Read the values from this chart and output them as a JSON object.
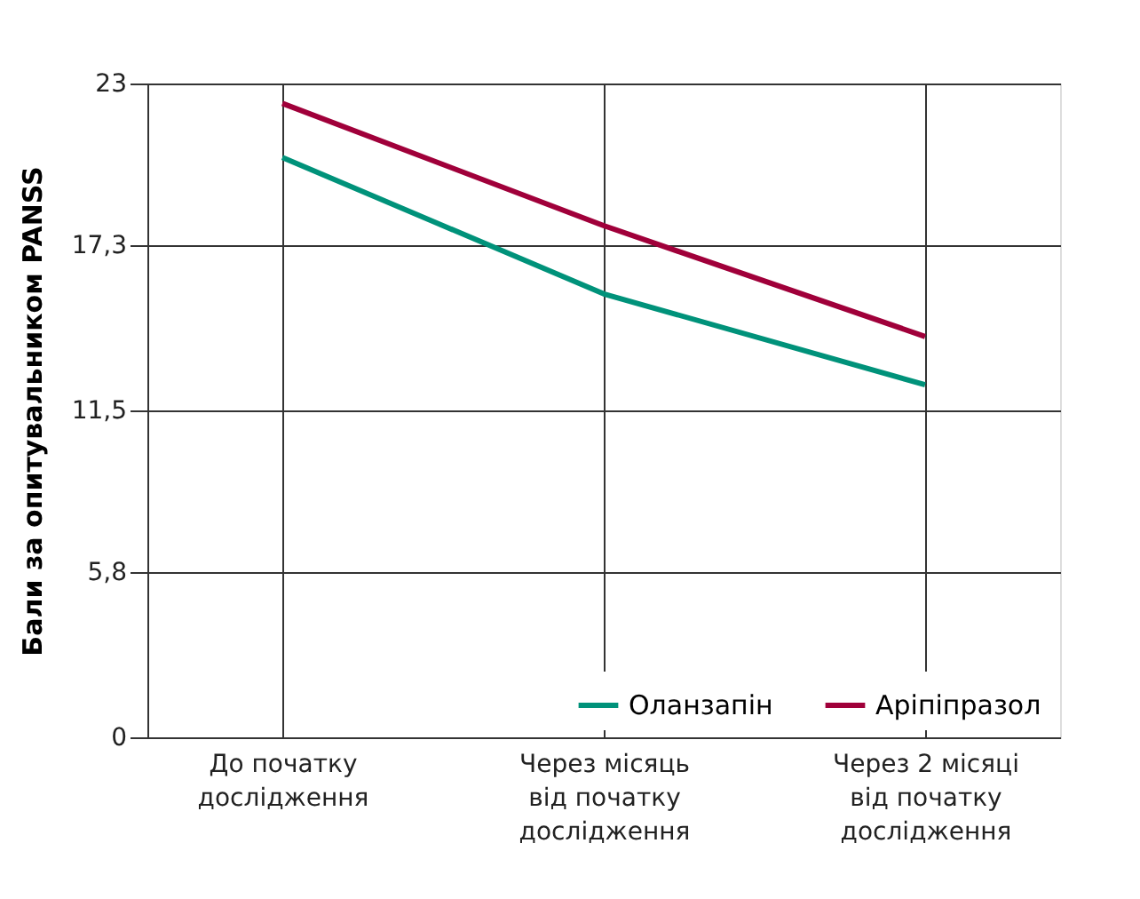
{
  "chart_data": {
    "type": "line",
    "ylabel": "Бали за опитувальником PANSS",
    "categories": [
      "До початку\nдослідження",
      "Через місяць\nвід початку\nдослідження",
      "Через 2 місяці\nвід початку\nдослідження"
    ],
    "series": [
      {
        "name": "Оланзапін",
        "color": "#00927a",
        "values": [
          20.4,
          15.6,
          12.4
        ]
      },
      {
        "name": "Аріпіпразол",
        "color": "#a0003a",
        "values": [
          22.3,
          18.0,
          14.1
        ]
      }
    ],
    "ylim": [
      0,
      23
    ],
    "yticks": [
      0,
      {
        "value": 5.8,
        "label": "5,8"
      },
      {
        "value": 11.5,
        "label": "11,5"
      },
      {
        "value": 17.3,
        "label": "17,3"
      },
      23
    ],
    "grid": true,
    "legend": "bottom right",
    "marker": "none",
    "line_style": "solid"
  }
}
